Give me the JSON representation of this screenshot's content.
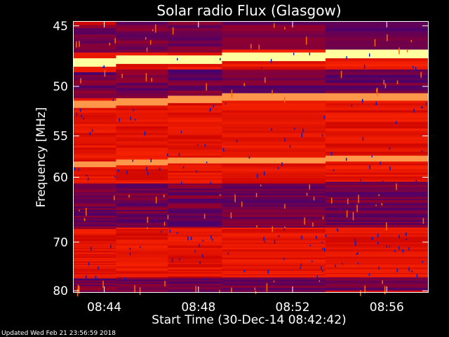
{
  "chart_data": {
    "type": "heatmap",
    "title": "Solar radio Flux (Glasgow)",
    "xlabel": "Start Time (30-Dec-14 08:42:42)",
    "ylabel": "Frequency [MHz]",
    "x_ticks": [
      "08:44",
      "08:48",
      "08:52",
      "08:56"
    ],
    "x_tick_minutes": [
      1.3,
      5.3,
      9.3,
      13.3
    ],
    "x_range_minutes": [
      0,
      15.05
    ],
    "y_ticks": [
      45,
      50,
      55,
      60,
      70,
      80
    ],
    "y_range": [
      44.7,
      80.3
    ],
    "y_scale": "reciprocal",
    "colormap": [
      "#0000c0",
      "#ff0000",
      "#ffffa0"
    ],
    "time_segments_minutes": [
      0,
      1.8,
      4.0,
      6.3,
      10.7,
      15.05
    ],
    "bright_bands_mhz": [
      {
        "freq": 47.8,
        "level": "max"
      },
      {
        "freq": 51.5,
        "level": "high"
      },
      {
        "freq": 58.2,
        "level": "high"
      }
    ],
    "dim_bands_mhz": [
      {
        "from": 44.7,
        "to": 47.0
      },
      {
        "from": 48.5,
        "to": 51.0
      },
      {
        "from": 60.8,
        "to": 67.5
      },
      {
        "from": 77.0,
        "to": 80.3
      }
    ]
  },
  "footer": {
    "updated": "Updated Wed Feb 21 23:56:59 2018"
  }
}
